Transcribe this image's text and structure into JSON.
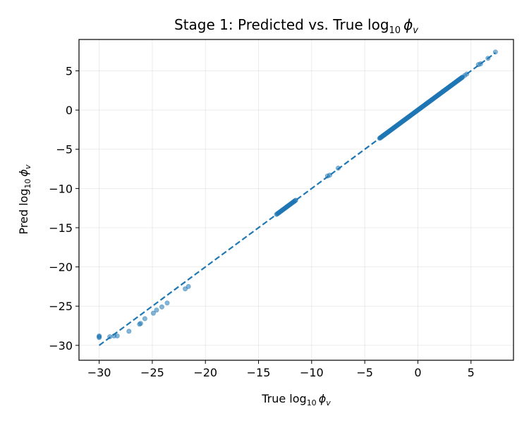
{
  "chart_data": {
    "type": "scatter",
    "title": "Stage 1: Predicted vs. True log",
    "title_sub": "10",
    "title_symbol": "ϕ",
    "title_symbol_sub": "v",
    "xlabel": "True log",
    "xlabel_sub": "10",
    "xlabel_symbol": "ϕ",
    "xlabel_symbol_sub": "v",
    "ylabel": "Pred log",
    "ylabel_sub": "10",
    "ylabel_symbol": "ϕ",
    "ylabel_symbol_sub": "v",
    "xlim": [
      -31.9,
      9.0
    ],
    "ylim": [
      -31.9,
      9.0
    ],
    "xticks": [
      -30,
      -25,
      -20,
      -15,
      -10,
      -5,
      0,
      5
    ],
    "yticks": [
      -30,
      -25,
      -20,
      -15,
      -10,
      -5,
      0,
      5
    ],
    "xtick_labels": [
      "−30",
      "−25",
      "−20",
      "−15",
      "−10",
      "−5",
      "0",
      "5"
    ],
    "ytick_labels": [
      "−30",
      "−25",
      "−20",
      "−15",
      "−10",
      "−5",
      "0",
      "5"
    ],
    "grid": true,
    "marker_color": "#1f77b4",
    "reference_line": {
      "style": "dashed",
      "color": "#1f77b4",
      "from": [
        -30,
        -30
      ],
      "to": [
        7.3,
        7.3
      ]
    },
    "clusters": [
      {
        "x_range": [
          -3.6,
          4.2
        ],
        "slope": 1.0,
        "offset": 0.0,
        "points": 160
      },
      {
        "x_range": [
          -13.3,
          -11.5
        ],
        "slope": 1.0,
        "offset": 0.0,
        "points": 30
      }
    ],
    "points": [
      {
        "x": 7.3,
        "y": 7.4
      },
      {
        "x": 6.6,
        "y": 6.6
      },
      {
        "x": 5.9,
        "y": 5.9
      },
      {
        "x": 5.7,
        "y": 5.8
      },
      {
        "x": 4.6,
        "y": 4.6
      },
      {
        "x": 4.4,
        "y": 4.4
      },
      {
        "x": -7.5,
        "y": -7.4
      },
      {
        "x": -8.3,
        "y": -8.3
      },
      {
        "x": -8.5,
        "y": -8.4
      },
      {
        "x": -21.6,
        "y": -22.5
      },
      {
        "x": -21.9,
        "y": -22.8
      },
      {
        "x": -23.6,
        "y": -24.6
      },
      {
        "x": -24.1,
        "y": -25.1
      },
      {
        "x": -24.6,
        "y": -25.5
      },
      {
        "x": -24.9,
        "y": -25.9
      },
      {
        "x": -25.7,
        "y": -26.6
      },
      {
        "x": -26.1,
        "y": -27.2
      },
      {
        "x": -26.2,
        "y": -27.3
      },
      {
        "x": -27.2,
        "y": -28.2
      },
      {
        "x": -28.3,
        "y": -28.8
      },
      {
        "x": -28.6,
        "y": -28.8
      },
      {
        "x": -29.0,
        "y": -28.9
      },
      {
        "x": -30.0,
        "y": -28.8
      },
      {
        "x": -30.0,
        "y": -28.9
      },
      {
        "x": -30.0,
        "y": -29.0
      }
    ]
  }
}
